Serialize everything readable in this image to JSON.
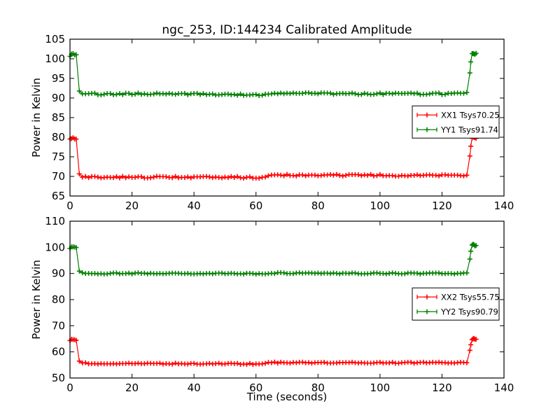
{
  "figure": {
    "title": "ngc_253, ID:144234 Calibrated Amplitude",
    "xlabel": "Time (seconds)",
    "ylabel": "Power in Kelvin",
    "background": "#ffffff",
    "axis_color": "#000000"
  },
  "chart_data": [
    {
      "type": "line",
      "title": "ngc_253, ID:144234 Calibrated Amplitude",
      "xlabel": "",
      "ylabel": "Power in Kelvin",
      "xlim": [
        0,
        140
      ],
      "ylim": [
        65,
        105
      ],
      "xticks": [
        0,
        20,
        40,
        60,
        80,
        100,
        120,
        140
      ],
      "yticks": [
        65,
        70,
        75,
        80,
        85,
        90,
        95,
        100,
        105
      ],
      "grid": false,
      "legend_position": "center right",
      "marker_interval": 1,
      "series": [
        {
          "name": "XX1 Tsys70.25",
          "color": "#ff0000",
          "marker": "+",
          "noise": 0.22,
          "seed": 1,
          "x": [
            0,
            1,
            2,
            2.4,
            3,
            4,
            10,
            30,
            50,
            59,
            61.5,
            63,
            66,
            90,
            110,
            126,
            128.6,
            129,
            129.5,
            130,
            131
          ],
          "y": [
            79.4,
            79.9,
            79.6,
            79.6,
            70.6,
            69.9,
            69.8,
            69.8,
            69.8,
            69.7,
            69.4,
            70.0,
            70.3,
            70.3,
            70.25,
            70.2,
            70.3,
            75.0,
            79.8,
            80.2,
            79.9
          ],
          "extra_marker_ts": [
            0.5,
            1.5,
            129.3,
            129.7,
            130.3,
            130.6
          ]
        },
        {
          "name": "YY1 Tsys91.74",
          "color": "#008000",
          "marker": "+",
          "noise": 0.22,
          "seed": 2,
          "x": [
            0,
            1,
            2,
            2.4,
            3,
            4,
            10,
            30,
            50,
            59,
            61.5,
            63,
            66,
            90,
            110,
            126,
            128.6,
            129,
            129.5,
            130,
            131
          ],
          "y": [
            100.8,
            101.3,
            100.9,
            100.9,
            91.6,
            91.1,
            91.0,
            91.1,
            90.9,
            90.9,
            90.7,
            91.0,
            91.15,
            91.1,
            91.05,
            91.1,
            91.2,
            96.2,
            101.0,
            101.5,
            101.2
          ],
          "extra_marker_ts": [
            0.5,
            1.5,
            129.3,
            129.7,
            130.3,
            130.6
          ]
        }
      ]
    },
    {
      "type": "line",
      "title": "",
      "xlabel": "Time (seconds)",
      "ylabel": "Power in Kelvin",
      "xlim": [
        0,
        140
      ],
      "ylim": [
        50,
        110
      ],
      "xticks": [
        0,
        20,
        40,
        60,
        80,
        100,
        120,
        140
      ],
      "yticks": [
        50,
        60,
        70,
        80,
        90,
        100,
        110
      ],
      "grid": false,
      "legend_position": "center right",
      "marker_interval": 1,
      "series": [
        {
          "name": "XX2 Tsys55.75",
          "color": "#ff0000",
          "marker": "+",
          "noise": 0.22,
          "seed": 3,
          "x": [
            0,
            1,
            2,
            2.4,
            3,
            4,
            10,
            30,
            50,
            59,
            61.5,
            63,
            66,
            90,
            110,
            126,
            128.6,
            129,
            129.5,
            130,
            131
          ],
          "y": [
            64.3,
            64.9,
            64.5,
            64.5,
            56.3,
            55.7,
            55.5,
            55.5,
            55.45,
            55.4,
            55.15,
            55.75,
            55.9,
            55.9,
            55.85,
            55.9,
            55.9,
            60.4,
            64.6,
            65.1,
            64.8
          ],
          "extra_marker_ts": [
            0.5,
            1.5,
            129.3,
            129.7,
            130.3,
            130.6
          ]
        },
        {
          "name": "YY2 Tsys90.79",
          "color": "#008000",
          "marker": "+",
          "noise": 0.22,
          "seed": 4,
          "x": [
            0,
            1,
            2,
            2.4,
            3,
            4,
            10,
            30,
            50,
            59,
            61.5,
            63,
            66,
            90,
            110,
            126,
            128.6,
            129,
            129.5,
            130,
            131
          ],
          "y": [
            99.7,
            100.3,
            99.9,
            99.9,
            90.7,
            90.2,
            90.0,
            90.1,
            89.95,
            89.9,
            89.75,
            90.0,
            90.1,
            90.05,
            90.0,
            90.0,
            90.1,
            95.4,
            100.4,
            101.0,
            100.6
          ],
          "extra_marker_ts": [
            0.5,
            1.5,
            129.3,
            129.7,
            130.3,
            130.6
          ]
        }
      ]
    }
  ]
}
